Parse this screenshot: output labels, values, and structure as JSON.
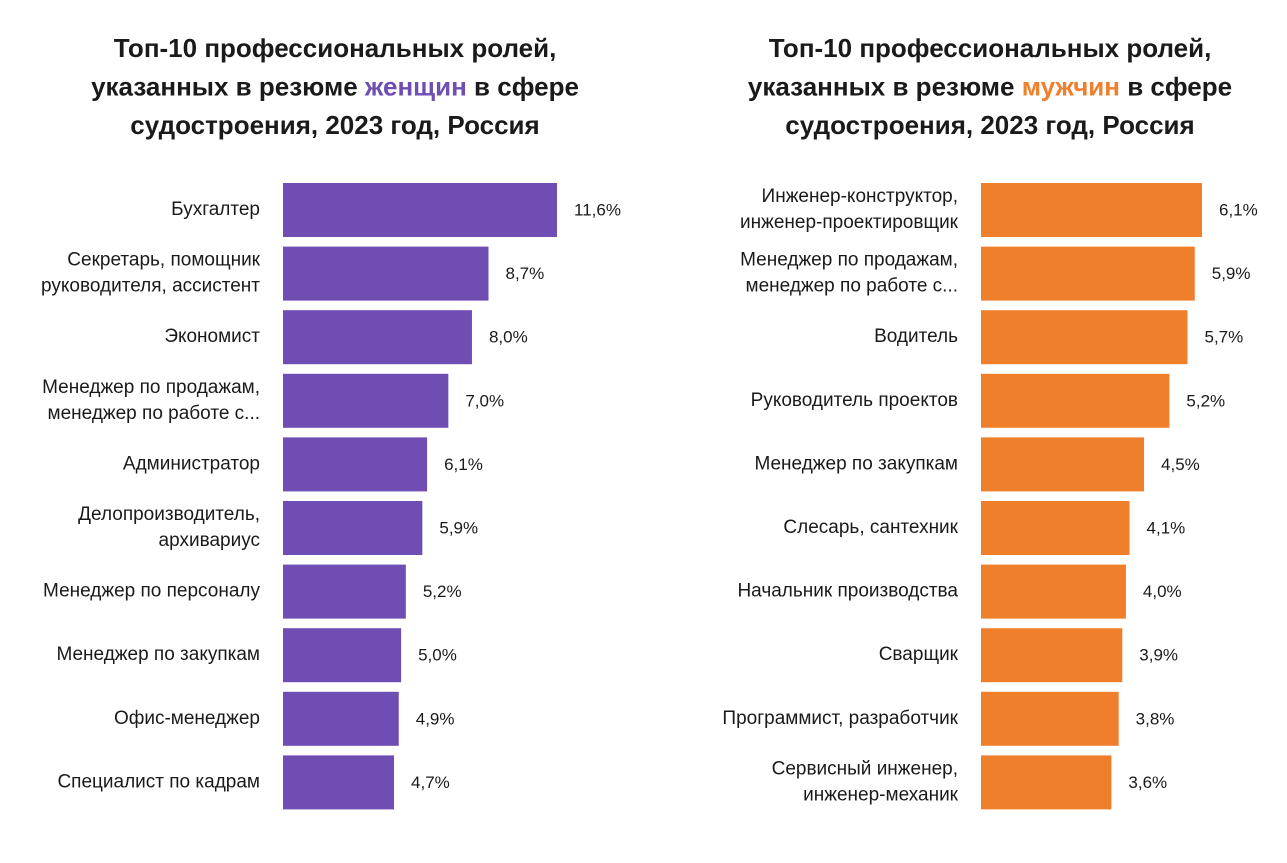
{
  "chart_data": [
    {
      "type": "bar",
      "orientation": "horizontal",
      "title": [
        [
          "Топ-10 профессиональных ролей,"
        ],
        [
          "указанных в резюме ",
          {
            "text": "женщин",
            "color": "#6f4db3"
          },
          " в сфере"
        ],
        [
          "судостроения, 2023 год, Россия"
        ]
      ],
      "categories": [
        [
          "Бухгалтер"
        ],
        [
          "Секретарь, помощник",
          "руководителя, ассистент"
        ],
        [
          "Экономист"
        ],
        [
          "Менеджер по продажам,",
          "менеджер по работе с..."
        ],
        [
          "Администратор"
        ],
        [
          "Делопроизводитель,",
          "архивариус"
        ],
        [
          "Менеджер по персоналу"
        ],
        [
          "Менеджер по закупкам"
        ],
        [
          "Офис-менеджер"
        ],
        [
          "Специалист по кадрам"
        ]
      ],
      "values": [
        11.6,
        8.7,
        8.0,
        7.0,
        6.1,
        5.9,
        5.2,
        5.0,
        4.9,
        4.7
      ],
      "value_labels": [
        "11,6%",
        "8,7%",
        "8,0%",
        "7,0%",
        "6,1%",
        "5,9%",
        "5,2%",
        "5,0%",
        "4,9%",
        "4,7%"
      ],
      "color": "#6f4db3"
    },
    {
      "type": "bar",
      "orientation": "horizontal",
      "title": [
        [
          "Топ-10 профессиональных ролей,"
        ],
        [
          "указанных в резюме ",
          {
            "text": "мужчин",
            "color": "#f07f2c"
          },
          " в сфере"
        ],
        [
          "судостроения, 2023 год, Россия"
        ]
      ],
      "categories": [
        [
          "Инженер-конструктор,",
          "инженер-проектировщик"
        ],
        [
          "Менеджер по продажам,",
          "менеджер по работе с..."
        ],
        [
          "Водитель"
        ],
        [
          "Руководитель проектов"
        ],
        [
          "Менеджер по закупкам"
        ],
        [
          "Слесарь, сантехник"
        ],
        [
          "Начальник производства"
        ],
        [
          "Сварщик"
        ],
        [
          "Программист, разработчик"
        ],
        [
          "Сервисный инженер,",
          "инженер-механик"
        ]
      ],
      "values": [
        6.1,
        5.9,
        5.7,
        5.2,
        4.5,
        4.1,
        4.0,
        3.9,
        3.8,
        3.6
      ],
      "value_labels": [
        "6,1%",
        "5,9%",
        "5,7%",
        "5,2%",
        "4,5%",
        "4,1%",
        "4,0%",
        "3,9%",
        "3,8%",
        "3,6%"
      ],
      "color": "#f07f2c"
    }
  ]
}
